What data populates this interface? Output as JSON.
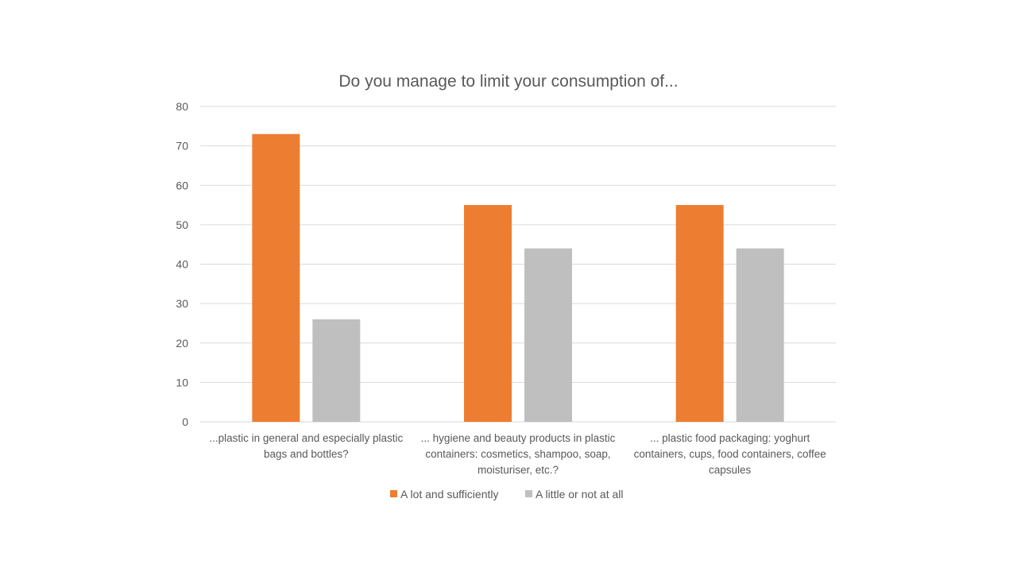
{
  "chart_data": {
    "type": "bar",
    "title": "Do you manage to limit your consumption of...",
    "xlabel": "",
    "ylabel": "",
    "ylim": [
      0,
      80
    ],
    "y_ticks": [
      0,
      10,
      20,
      30,
      40,
      50,
      60,
      70,
      80
    ],
    "grid": true,
    "legend_position": "bottom",
    "categories": [
      [
        "...plastic in general and especially plastic",
        "bags and bottles?"
      ],
      [
        "... hygiene and beauty products in plastic",
        "containers: cosmetics, shampoo, soap,",
        "moisturiser, etc.?"
      ],
      [
        "... plastic food packaging: yoghurt",
        "containers, cups, food containers, coffee",
        "capsules"
      ]
    ],
    "series": [
      {
        "name": "A lot and sufficiently",
        "color": "#ed7d31",
        "values": [
          73,
          55,
          55
        ]
      },
      {
        "name": "A little or not at all",
        "color": "#bfbfbf",
        "values": [
          26,
          44,
          44
        ]
      }
    ]
  }
}
